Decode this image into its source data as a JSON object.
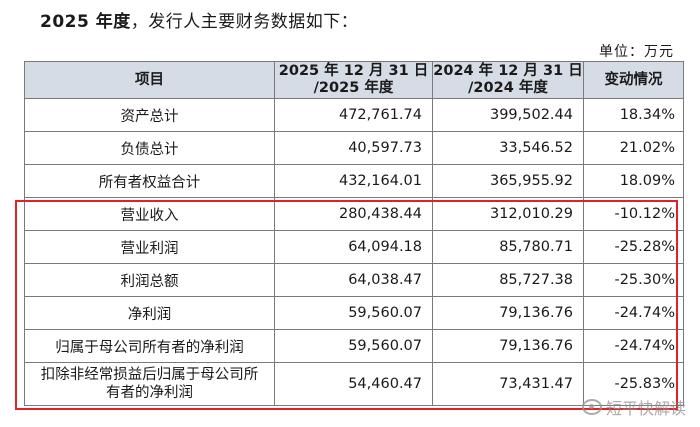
{
  "intro": {
    "year": "2025 年度",
    "text": "，发行人主要财务数据如下："
  },
  "unit": "单位：万元",
  "table": {
    "headers": {
      "item": "项目",
      "col1_line1": "2025 年 12 月 31 日",
      "col1_line2": "/2025 年度",
      "col2_line1": "2024 年 12 月 31 日",
      "col2_line2": "/2024 年度",
      "change": "变动情况"
    },
    "rows": [
      {
        "item": "资产总计",
        "v2025": "472,761.74",
        "v2024": "399,502.44",
        "change": "18.34%"
      },
      {
        "item": "负债总计",
        "v2025": "40,597.73",
        "v2024": "33,546.52",
        "change": "21.02%"
      },
      {
        "item": "所有者权益合计",
        "v2025": "432,164.01",
        "v2024": "365,955.92",
        "change": "18.09%"
      },
      {
        "item": "营业收入",
        "v2025": "280,438.44",
        "v2024": "312,010.29",
        "change": "-10.12%"
      },
      {
        "item": "营业利润",
        "v2025": "64,094.18",
        "v2024": "85,780.71",
        "change": "-25.28%"
      },
      {
        "item": "利润总额",
        "v2025": "64,038.47",
        "v2024": "85,727.38",
        "change": "-25.30%"
      },
      {
        "item": "净利润",
        "v2025": "59,560.07",
        "v2024": "79,136.76",
        "change": "-24.74%"
      },
      {
        "item": "归属于母公司所有者的净利润",
        "v2025": "59,560.07",
        "v2024": "79,136.76",
        "change": "-24.74%"
      },
      {
        "item_line1": "扣除非经常损益后归属于母公司所",
        "item_line2": "有者的净利润",
        "v2025": "54,460.47",
        "v2024": "73,431.47",
        "change": "-25.83%"
      }
    ]
  },
  "highlight_color": "#e0202a",
  "header_bg": "#d6dce5",
  "watermark": {
    "icon": "weibo-icon",
    "text": "短平快解读"
  }
}
